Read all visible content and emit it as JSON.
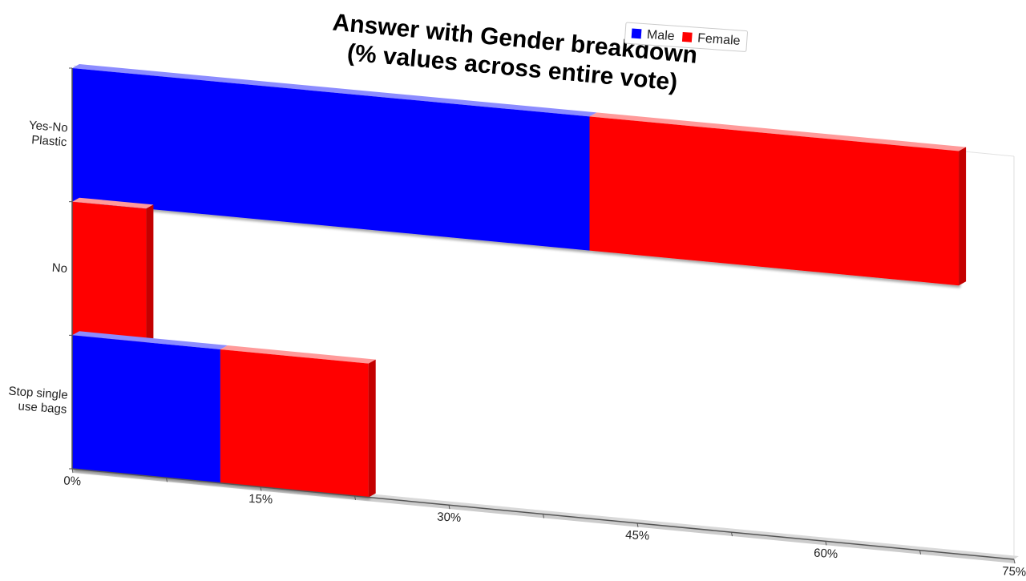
{
  "chart_data": {
    "type": "bar",
    "orientation": "horizontal",
    "stacked": true,
    "title": "Answer with Gender breakdown\n(% values across entire vote)",
    "categories": [
      "Yes-No\nPlastic",
      "No",
      "Stop single\nuse bags"
    ],
    "series": [
      {
        "name": "Male",
        "values": [
          41.2,
          0,
          11.8
        ]
      },
      {
        "name": "Female",
        "values": [
          29.4,
          5.9,
          11.8
        ]
      }
    ],
    "x_axis": {
      "min": 0,
      "max": 75,
      "ticks": [
        0,
        15,
        30,
        45,
        60,
        75
      ],
      "tick_labels": [
        "0%",
        "15%",
        "30%",
        "45%",
        "60%",
        "75%"
      ]
    },
    "legend": {
      "position": "top-right",
      "entries": [
        "Male",
        "Female"
      ]
    },
    "colors": {
      "Male": "#0000ff",
      "Female": "#ff0000",
      "male_top": "#8c8cff",
      "female_top": "#ff9a9a",
      "female_side": "#c40000",
      "axis": "#555555",
      "floor": "#cccccc"
    },
    "grid": false
  }
}
